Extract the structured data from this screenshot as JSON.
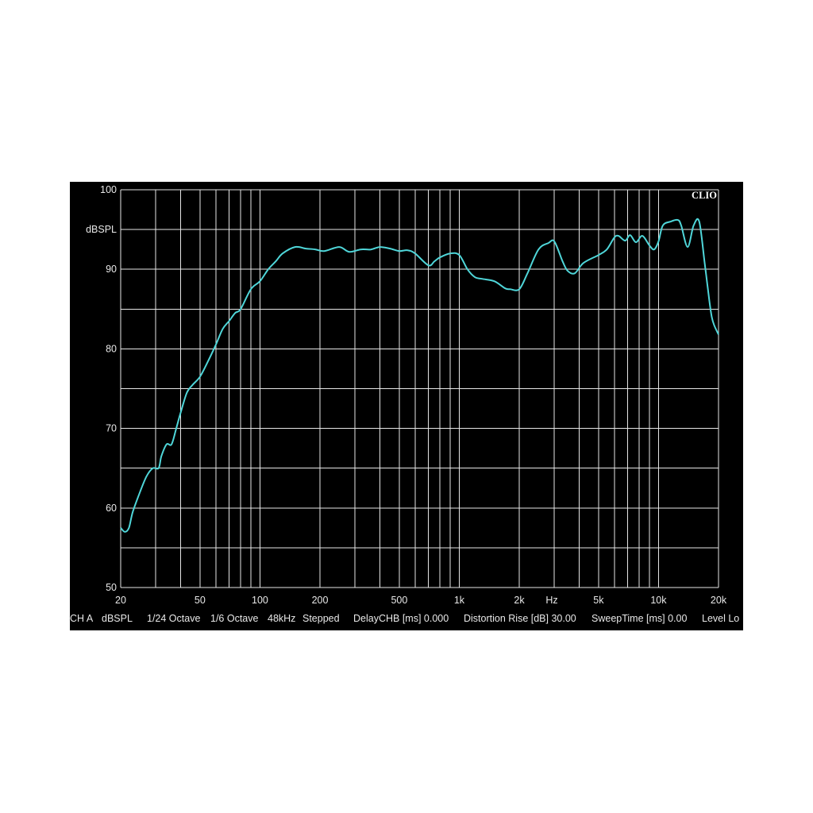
{
  "brand": "CLIO",
  "status_bar": {
    "channel": "CH A",
    "unit": "dBSPL",
    "resolution": "1/24 Octave",
    "smoothing": "1/6 Octave",
    "sample_rate": "48kHz",
    "mode": "Stepped",
    "delay": "DelayCHB [ms] 0.000",
    "distortion_rise": "Distortion Rise [dB] 30.00",
    "sweep_time": "SweepTime [ms] 0.00",
    "level": "Level Lo"
  },
  "colors": {
    "background": "#000000",
    "grid": "#e6e6e6",
    "trace": "#4fd6d9",
    "text": "#e8e8e8"
  },
  "chart_data": {
    "type": "line",
    "xscale": "log",
    "xlim": [
      20,
      20000
    ],
    "ylim": [
      50,
      100
    ],
    "ylabel": "dBSPL",
    "xlabel": "Hz",
    "grid": true,
    "y_ticks": [
      {
        "value": 100,
        "label": "100"
      },
      {
        "value": 90,
        "label": "90"
      },
      {
        "value": 80,
        "label": "80"
      },
      {
        "value": 70,
        "label": "70"
      },
      {
        "value": 60,
        "label": "60"
      },
      {
        "value": 50,
        "label": "50"
      }
    ],
    "x_ticks": [
      {
        "value": 20,
        "label": "20"
      },
      {
        "value": 50,
        "label": "50"
      },
      {
        "value": 100,
        "label": "100"
      },
      {
        "value": 200,
        "label": "200"
      },
      {
        "value": 500,
        "label": "500"
      },
      {
        "value": 1000,
        "label": "1k"
      },
      {
        "value": 2000,
        "label": "2k"
      },
      {
        "value": 5000,
        "label": "5k"
      },
      {
        "value": 10000,
        "label": "10k"
      },
      {
        "value": 20000,
        "label": "20k"
      }
    ],
    "series": [
      {
        "x": [
          20,
          21,
          22,
          23,
          25,
          27,
          29,
          31,
          32,
          34,
          36,
          38,
          40,
          43,
          46,
          50,
          55,
          60,
          65,
          70,
          75,
          80,
          90,
          100,
          110,
          120,
          130,
          150,
          170,
          190,
          210,
          250,
          280,
          320,
          360,
          400,
          450,
          500,
          550,
          600,
          700,
          750,
          800,
          900,
          1000,
          1100,
          1200,
          1300,
          1500,
          1700,
          1800,
          2000,
          2200,
          2500,
          2800,
          3000,
          3300,
          3500,
          3800,
          4200,
          5000,
          5500,
          6000,
          6300,
          6800,
          7200,
          7700,
          8300,
          9000,
          9500,
          10000,
          10500,
          11500,
          12500,
          13000,
          14000,
          15000,
          16000,
          17000,
          17500,
          18000,
          18500,
          19000,
          20000
        ],
        "y": [
          57.5,
          57.0,
          57.5,
          59.5,
          62.0,
          64.0,
          65.0,
          65.0,
          66.5,
          68.0,
          68.0,
          70.0,
          72.0,
          74.5,
          75.5,
          76.5,
          78.5,
          80.5,
          82.5,
          83.5,
          84.5,
          85.0,
          87.5,
          88.5,
          90.0,
          91.0,
          92.0,
          92.8,
          92.6,
          92.5,
          92.3,
          92.8,
          92.2,
          92.5,
          92.5,
          92.8,
          92.6,
          92.3,
          92.4,
          92.0,
          90.5,
          91.0,
          91.5,
          92.0,
          91.8,
          90.0,
          89.0,
          88.8,
          88.5,
          87.6,
          87.5,
          87.5,
          89.5,
          92.5,
          93.3,
          93.5,
          91.0,
          89.8,
          89.5,
          90.8,
          91.8,
          92.5,
          94.0,
          94.2,
          93.6,
          94.3,
          93.4,
          94.2,
          93.0,
          92.5,
          93.5,
          95.5,
          96.0,
          96.2,
          95.5,
          92.8,
          95.5,
          96.0,
          91.0,
          88.5,
          86.0,
          84.0,
          83.0,
          81.8
        ]
      }
    ]
  }
}
